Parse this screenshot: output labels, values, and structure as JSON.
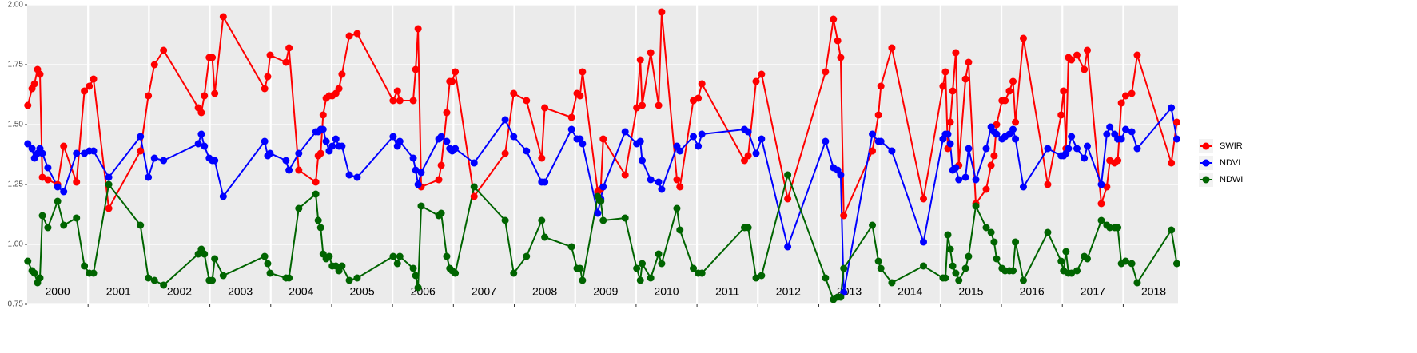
{
  "chart_data": {
    "type": "line",
    "x": [
      2000.01,
      2000.08,
      2000.12,
      2000.17,
      2000.21,
      2000.25,
      2000.34,
      2000.5,
      2000.6,
      2000.81,
      2000.94,
      2001.02,
      2001.09,
      2001.34,
      2001.86,
      2001.99,
      2002.09,
      2002.24,
      2002.81,
      2002.86,
      2002.91,
      2002.99,
      2003.04,
      2003.08,
      2003.22,
      2003.9,
      2003.95,
      2003.99,
      2004.25,
      2004.3,
      2004.46,
      2004.74,
      2004.78,
      2004.82,
      2004.86,
      2004.91,
      2004.96,
      2005.01,
      2005.07,
      2005.12,
      2005.17,
      2005.29,
      2005.42,
      2006.01,
      2006.08,
      2006.12,
      2006.34,
      2006.38,
      2006.42,
      2006.47,
      2006.76,
      2006.8,
      2006.89,
      2006.94,
      2006.98,
      2007.03,
      2007.34,
      2007.85,
      2007.99,
      2008.2,
      2008.45,
      2008.5,
      2008.94,
      2009.03,
      2009.08,
      2009.12,
      2009.37,
      2009.42,
      2009.46,
      2009.82,
      2010.01,
      2010.07,
      2010.1,
      2010.24,
      2010.37,
      2010.42,
      2010.67,
      2010.72,
      2010.94,
      2011.02,
      2011.08,
      2011.78,
      2011.84,
      2011.97,
      2012.06,
      2012.49,
      2013.11,
      2013.24,
      2013.31,
      2013.36,
      2013.41,
      2013.88,
      2013.98,
      2014.02,
      2014.2,
      2014.72,
      2015.04,
      2015.08,
      2015.12,
      2015.16,
      2015.2,
      2015.25,
      2015.3,
      2015.41,
      2015.46,
      2015.58,
      2015.75,
      2015.83,
      2015.88,
      2015.92,
      2016.01,
      2016.06,
      2016.13,
      2016.19,
      2016.23,
      2016.36,
      2016.76,
      2016.98,
      2017.02,
      2017.06,
      2017.1,
      2017.15,
      2017.24,
      2017.36,
      2017.41,
      2017.64,
      2017.73,
      2017.78,
      2017.86,
      2017.91,
      2017.97,
      2018.04,
      2018.14,
      2018.23,
      2018.79,
      2018.88
    ],
    "series": [
      {
        "name": "SWIR",
        "color": "#ff0000",
        "values": [
          1.58,
          1.65,
          1.67,
          1.73,
          1.71,
          1.28,
          1.27,
          1.25,
          1.41,
          1.26,
          1.64,
          1.66,
          1.69,
          1.15,
          1.39,
          1.62,
          1.75,
          1.81,
          1.57,
          1.55,
          1.62,
          1.78,
          1.78,
          1.63,
          1.95,
          1.65,
          1.7,
          1.79,
          1.76,
          1.82,
          1.31,
          1.26,
          1.37,
          1.38,
          1.54,
          1.61,
          1.62,
          1.62,
          1.63,
          1.65,
          1.71,
          1.87,
          1.88,
          1.6,
          1.64,
          1.6,
          1.6,
          1.73,
          1.9,
          1.24,
          1.27,
          1.33,
          1.55,
          1.68,
          1.68,
          1.72,
          1.2,
          1.38,
          1.63,
          1.6,
          1.36,
          1.57,
          1.53,
          1.63,
          1.62,
          1.72,
          1.22,
          1.23,
          1.44,
          1.29,
          1.57,
          1.77,
          1.58,
          1.8,
          1.58,
          1.97,
          1.27,
          1.24,
          1.6,
          1.61,
          1.67,
          1.35,
          1.37,
          1.68,
          1.71,
          1.19,
          1.72,
          1.94,
          1.85,
          1.78,
          1.12,
          1.39,
          1.54,
          1.66,
          1.82,
          1.19,
          1.66,
          1.72,
          1.4,
          1.51,
          1.64,
          1.8,
          1.33,
          1.69,
          1.76,
          1.17,
          1.23,
          1.33,
          1.37,
          1.5,
          1.6,
          1.6,
          1.64,
          1.68,
          1.51,
          1.86,
          1.25,
          1.54,
          1.64,
          1.4,
          1.78,
          1.77,
          1.79,
          1.73,
          1.81,
          1.17,
          1.24,
          1.35,
          1.34,
          1.35,
          1.59,
          1.62,
          1.63,
          1.79,
          1.34,
          1.51
        ]
      },
      {
        "name": "NDVI",
        "color": "#0000ff",
        "values": [
          1.42,
          1.4,
          1.36,
          1.38,
          1.4,
          1.38,
          1.32,
          1.24,
          1.22,
          1.38,
          1.38,
          1.39,
          1.39,
          1.28,
          1.45,
          1.28,
          1.36,
          1.35,
          1.42,
          1.46,
          1.41,
          1.36,
          1.35,
          1.35,
          1.2,
          1.43,
          1.37,
          1.38,
          1.35,
          1.31,
          1.38,
          1.47,
          1.47,
          1.48,
          1.48,
          1.43,
          1.39,
          1.41,
          1.44,
          1.41,
          1.41,
          1.29,
          1.28,
          1.45,
          1.41,
          1.43,
          1.36,
          1.31,
          1.25,
          1.3,
          1.44,
          1.45,
          1.43,
          1.4,
          1.39,
          1.4,
          1.34,
          1.52,
          1.45,
          1.39,
          1.26,
          1.26,
          1.48,
          1.44,
          1.44,
          1.42,
          1.13,
          1.19,
          1.24,
          1.47,
          1.42,
          1.43,
          1.35,
          1.27,
          1.26,
          1.23,
          1.41,
          1.39,
          1.45,
          1.41,
          1.46,
          1.48,
          1.47,
          1.38,
          1.44,
          0.99,
          1.43,
          1.32,
          1.31,
          1.29,
          0.8,
          1.46,
          1.43,
          1.43,
          1.39,
          1.01,
          1.44,
          1.46,
          1.46,
          1.42,
          1.31,
          1.32,
          1.27,
          1.28,
          1.4,
          1.27,
          1.4,
          1.49,
          1.47,
          1.46,
          1.44,
          1.45,
          1.46,
          1.48,
          1.44,
          1.24,
          1.4,
          1.37,
          1.37,
          1.38,
          1.4,
          1.45,
          1.4,
          1.36,
          1.41,
          1.25,
          1.46,
          1.49,
          1.46,
          1.44,
          1.44,
          1.48,
          1.47,
          1.4,
          1.57,
          1.44
        ]
      },
      {
        "name": "NDWI",
        "color": "#006400",
        "values": [
          0.93,
          0.89,
          0.88,
          0.84,
          0.86,
          1.12,
          1.07,
          1.18,
          1.08,
          1.11,
          0.91,
          0.88,
          0.88,
          1.25,
          1.08,
          0.86,
          0.85,
          0.83,
          0.96,
          0.98,
          0.96,
          0.85,
          0.85,
          0.94,
          0.87,
          0.95,
          0.92,
          0.88,
          0.86,
          0.86,
          1.15,
          1.21,
          1.1,
          1.07,
          0.96,
          0.94,
          0.95,
          0.91,
          0.91,
          0.89,
          0.91,
          0.85,
          0.86,
          0.95,
          0.92,
          0.95,
          0.9,
          0.87,
          0.82,
          1.16,
          1.12,
          1.13,
          0.95,
          0.9,
          0.89,
          0.88,
          1.24,
          1.1,
          0.88,
          0.95,
          1.1,
          1.03,
          0.99,
          0.9,
          0.9,
          0.85,
          1.2,
          1.18,
          1.1,
          1.11,
          0.9,
          0.85,
          0.92,
          0.86,
          0.96,
          0.92,
          1.15,
          1.06,
          0.9,
          0.88,
          0.88,
          1.07,
          1.07,
          0.86,
          0.87,
          1.29,
          0.86,
          0.77,
          0.78,
          0.78,
          0.9,
          1.08,
          0.93,
          0.9,
          0.84,
          0.91,
          0.86,
          0.86,
          1.04,
          0.98,
          0.91,
          0.88,
          0.85,
          0.9,
          0.95,
          1.16,
          1.07,
          1.05,
          1.01,
          0.94,
          0.9,
          0.89,
          0.89,
          0.89,
          1.01,
          0.85,
          1.05,
          0.93,
          0.89,
          0.97,
          0.88,
          0.88,
          0.89,
          0.95,
          0.94,
          1.1,
          1.08,
          1.07,
          1.07,
          1.07,
          0.92,
          0.93,
          0.92,
          0.84,
          1.06,
          0.92
        ]
      }
    ],
    "xlim": [
      2000,
      2018.9
    ],
    "xticks": [
      2001,
      2002,
      2003,
      2004,
      2005,
      2006,
      2007,
      2008,
      2009,
      2010,
      2011,
      2012,
      2013,
      2014,
      2015,
      2016,
      2017,
      2018
    ],
    "year_labels": [
      {
        "value": 2000.5,
        "label": "2000"
      },
      {
        "value": 2001.5,
        "label": "2001"
      },
      {
        "value": 2002.5,
        "label": "2002"
      },
      {
        "value": 2003.5,
        "label": "2003"
      },
      {
        "value": 2004.5,
        "label": "2004"
      },
      {
        "value": 2005.5,
        "label": "2005"
      },
      {
        "value": 2006.5,
        "label": "2006"
      },
      {
        "value": 2007.5,
        "label": "2007"
      },
      {
        "value": 2008.5,
        "label": "2008"
      },
      {
        "value": 2009.5,
        "label": "2009"
      },
      {
        "value": 2010.5,
        "label": "2010"
      },
      {
        "value": 2011.5,
        "label": "2011"
      },
      {
        "value": 2012.5,
        "label": "2012"
      },
      {
        "value": 2013.5,
        "label": "2013"
      },
      {
        "value": 2014.5,
        "label": "2014"
      },
      {
        "value": 2015.5,
        "label": "2015"
      },
      {
        "value": 2016.5,
        "label": "2016"
      },
      {
        "value": 2017.5,
        "label": "2017"
      },
      {
        "value": 2018.5,
        "label": "2018"
      }
    ],
    "ylim": [
      0.75,
      2.0
    ],
    "yticks": [
      0.75,
      {
        "value": 1.0,
        "label": "1.00"
      },
      1.25,
      {
        "value": 1.5,
        "label": "1.50"
      },
      1.75,
      {
        "value": 2.0,
        "label": "2.00"
      }
    ],
    "grid": true,
    "legend_position": "right"
  }
}
